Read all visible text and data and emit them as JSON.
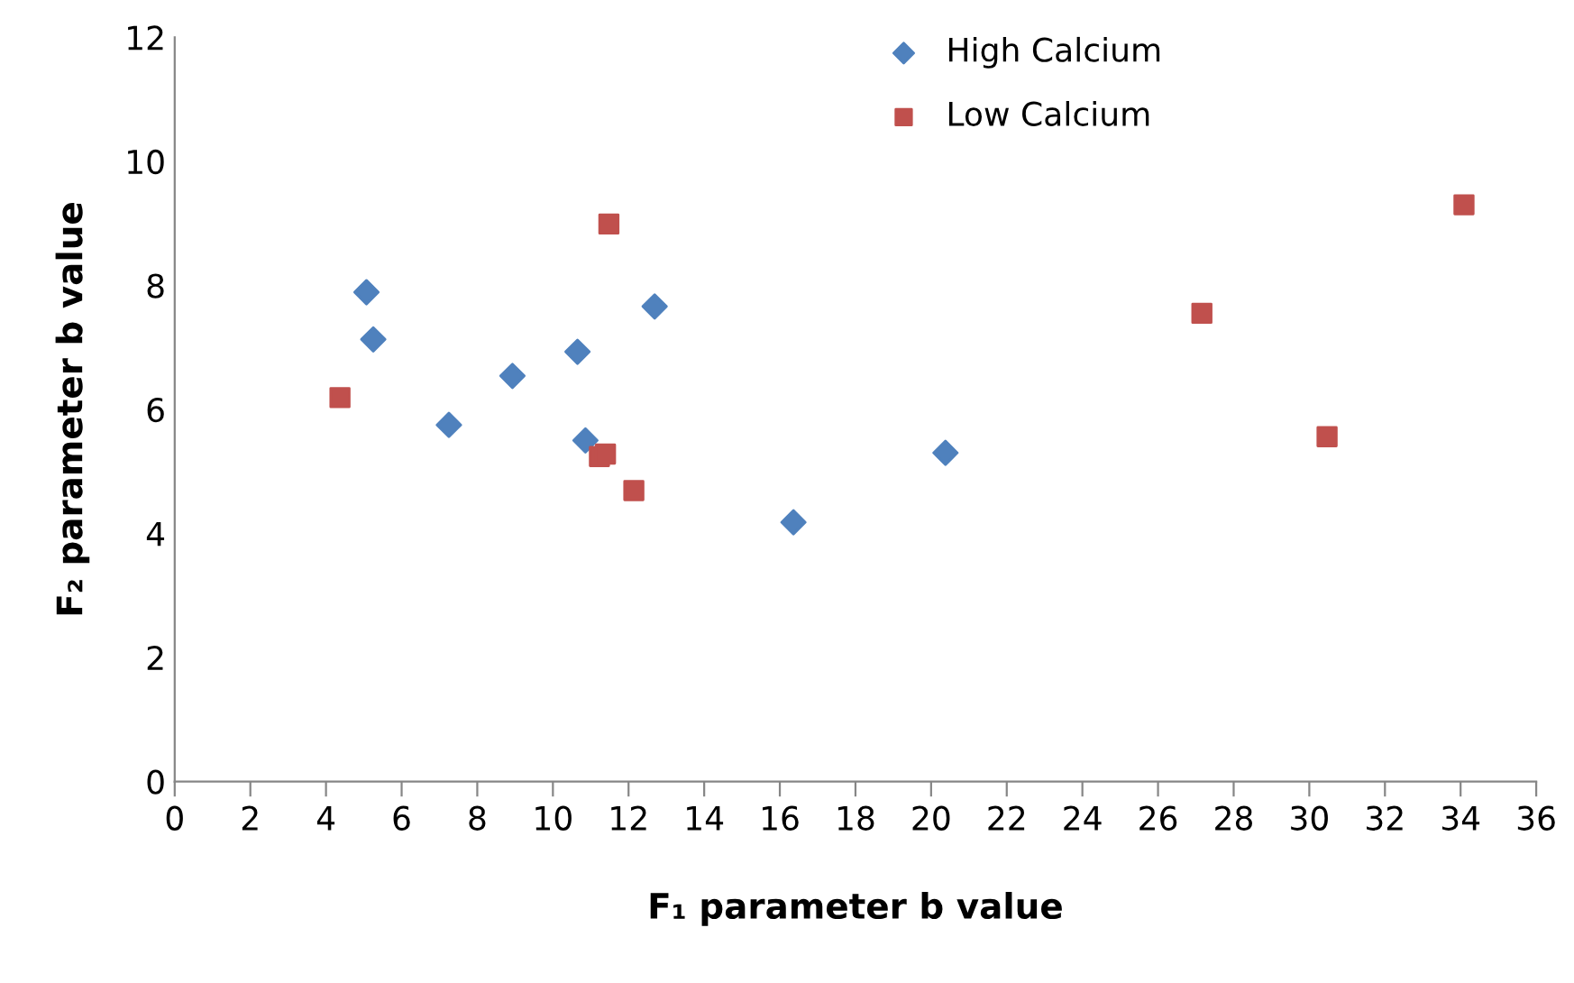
{
  "chart_data": {
    "type": "scatter",
    "xlabel": "F₁ parameter b value",
    "ylabel": "F₂ parameter b value",
    "xlim": [
      0,
      36
    ],
    "xticks": [
      0,
      2,
      4,
      6,
      8,
      10,
      12,
      14,
      16,
      18,
      20,
      22,
      24,
      26,
      28,
      30,
      32,
      34,
      36
    ],
    "ylim": [
      0,
      12
    ],
    "yticks": [
      0,
      2,
      4,
      6,
      8,
      10,
      12
    ],
    "grid": false,
    "legend": "top",
    "series": [
      {
        "name": "High Calcium",
        "color": "#4f81bd",
        "marker": "diamond",
        "x": [
          5.07,
          5.25,
          7.25,
          8.93,
          10.65,
          10.86,
          12.69,
          16.36,
          20.38
        ],
        "values": [
          7.89,
          7.13,
          5.75,
          6.54,
          6.93,
          5.5,
          7.66,
          4.18,
          5.3
        ]
      },
      {
        "name": "Low Calcium",
        "color": "#c0504d",
        "marker": "square",
        "x": [
          4.37,
          11.48,
          11.23,
          11.39,
          12.14,
          27.16,
          30.47,
          34.09
        ],
        "values": [
          6.19,
          8.99,
          5.24,
          5.28,
          4.69,
          7.55,
          5.56,
          9.3
        ]
      }
    ]
  }
}
